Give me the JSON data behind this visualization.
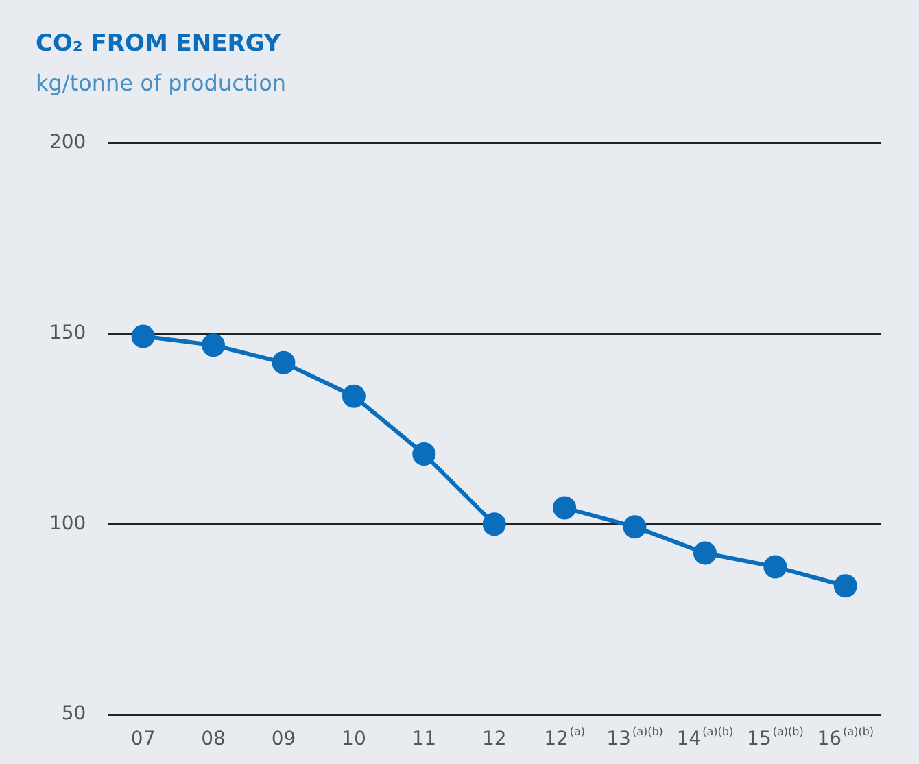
{
  "chart_data": {
    "type": "line",
    "title": "CO₂ FROM ENERGY",
    "subtitle": "kg/tonne of production",
    "categories": [
      "07",
      "08",
      "09",
      "10",
      "11",
      "12",
      "12$^{(a)}$",
      "13$^{(a)(b)}$",
      "14$^{(a)(b)}$",
      "15$^{(a)(b)}$",
      "16$^{(a)(b)}$"
    ],
    "series": [
      {
        "color": "#0a6ebd",
        "values": [
          149.3,
          147,
          142.4,
          133.6,
          118.4,
          100,
          null,
          null,
          null,
          null,
          null
        ]
      },
      {
        "color": "#0a6ebd",
        "values": [
          null,
          null,
          null,
          null,
          null,
          null,
          104.3,
          99.3,
          92.4,
          88.8,
          83.8
        ]
      }
    ],
    "ylim": [
      50,
      200
    ],
    "yticks": [
      50,
      100,
      150,
      200
    ],
    "grid": "y",
    "legend": false,
    "marker": "circle",
    "line_style": "solid"
  }
}
